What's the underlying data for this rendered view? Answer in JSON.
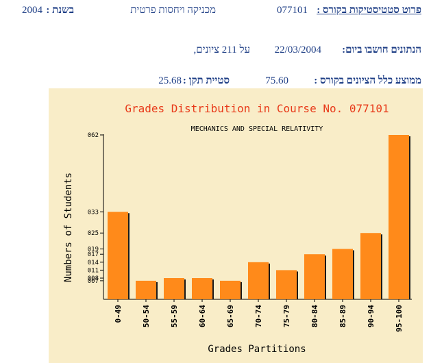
{
  "header": {
    "course_details_label": "פרוט סטטיסטיקות בקורס :",
    "course_number": "077101",
    "course_name": "מכניקה ויחסות פרטית",
    "year_label": "בשנת :",
    "year": "2004"
  },
  "computed": {
    "label": "הנתונים חושבו ביום:",
    "date": "22/03/2004",
    "grades_count_text": "על 211 ציונים,"
  },
  "stats": {
    "average_label": "ממוצע כלל הציונים בקורס :",
    "average": "75.60",
    "stddev_label": "סטיית תקן :",
    "stddev": "25.68"
  },
  "colors": {
    "panel_bg": "#f9edc8",
    "bar": "#ff8a1a",
    "bar_shadow": "#1a1a1a",
    "title_red": "#e83a1a",
    "header_blue": "#1f3f86"
  },
  "chart_data": {
    "type": "bar",
    "title": "Grades Distribution in Course No. 077101",
    "subtitle": "MECHANICS AND SPECIAL RELATIVITY",
    "xlabel": "Grades Partitions",
    "ylabel": "Numbers of Students",
    "categories": [
      "0-49",
      "50-54",
      "55-59",
      "60-64",
      "65-69",
      "70-74",
      "75-79",
      "80-84",
      "85-89",
      "90-94",
      "95-100"
    ],
    "values": [
      33,
      7,
      8,
      8,
      7,
      14,
      11,
      17,
      19,
      25,
      62
    ],
    "yticks": [
      "062",
      "033",
      "025",
      "019",
      "017",
      "014",
      "011",
      "008",
      "007"
    ],
    "ylim": [
      0,
      62
    ],
    "grid": false
  }
}
